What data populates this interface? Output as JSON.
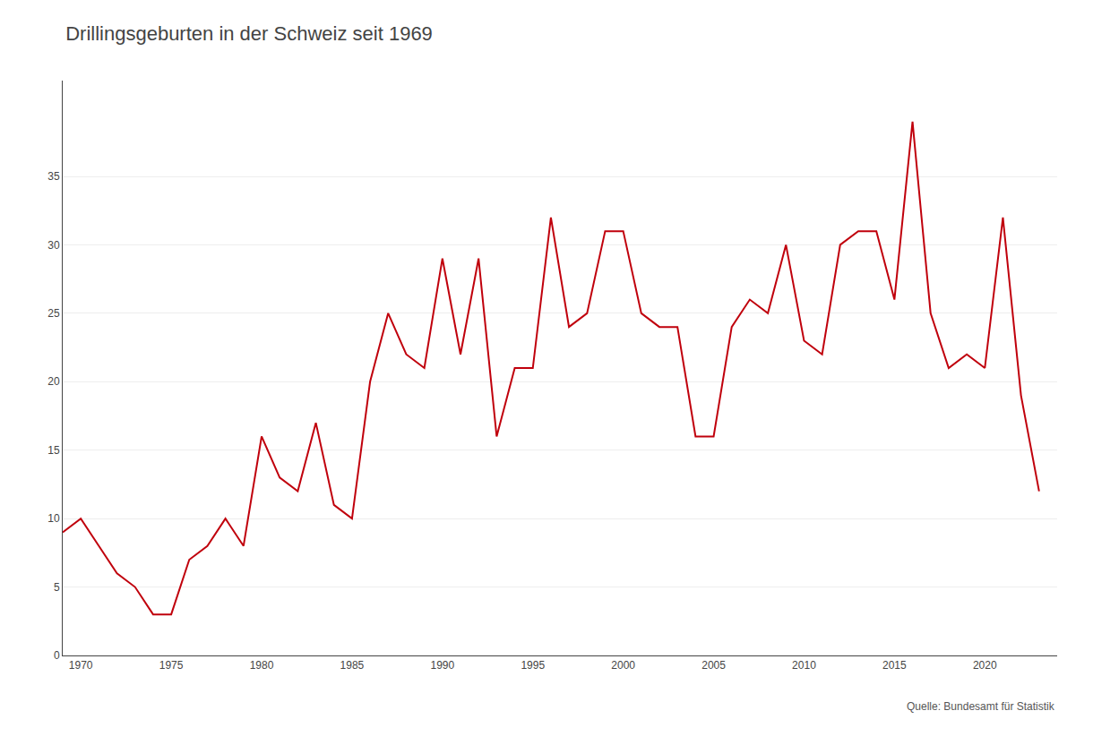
{
  "chart_data": {
    "type": "line",
    "title": "Drillingsgeburten in der Schweiz seit 1969",
    "annotations": [
      "Quelle: Bundesamt für Statistik"
    ],
    "x": [
      1969,
      1970,
      1971,
      1972,
      1973,
      1974,
      1975,
      1976,
      1977,
      1978,
      1979,
      1980,
      1981,
      1982,
      1983,
      1984,
      1985,
      1986,
      1987,
      1988,
      1989,
      1990,
      1991,
      1992,
      1993,
      1994,
      1995,
      1996,
      1997,
      1998,
      1999,
      2000,
      2001,
      2002,
      2003,
      2004,
      2005,
      2006,
      2007,
      2008,
      2009,
      2010,
      2011,
      2012,
      2013,
      2014,
      2015,
      2016,
      2017,
      2018,
      2019,
      2020,
      2021,
      2022,
      2023
    ],
    "values": [
      9,
      10,
      8,
      6,
      5,
      3,
      3,
      7,
      8,
      10,
      8,
      16,
      13,
      12,
      17,
      11,
      10,
      20,
      25,
      22,
      21,
      29,
      22,
      29,
      16,
      21,
      21,
      32,
      24,
      25,
      31,
      31,
      25,
      24,
      24,
      16,
      16,
      24,
      26,
      25,
      30,
      23,
      22,
      30,
      31,
      31,
      26,
      39,
      25,
      21,
      22,
      21,
      32,
      19,
      12
    ],
    "color": "#C0000C",
    "xlim": [
      1969,
      2024
    ],
    "xticks": [
      1970,
      1975,
      1980,
      1985,
      1990,
      1995,
      2000,
      2005,
      2010,
      2015,
      2020
    ],
    "ylim": [
      0,
      42
    ],
    "yticks": [
      0,
      5,
      10,
      15,
      20,
      25,
      30,
      35
    ],
    "grid": true
  }
}
